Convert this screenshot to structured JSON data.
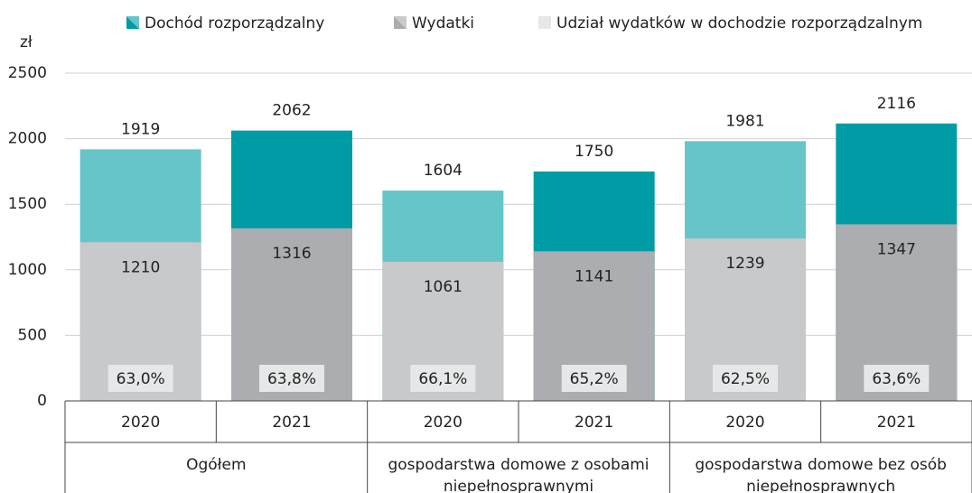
{
  "chart_data": {
    "type": "bar",
    "unit_label": "zł",
    "categories": [
      "2020",
      "2021",
      "2020",
      "2021",
      "2020",
      "2021"
    ],
    "groups": [
      "Ogółem",
      "gospodarstwa domowe z osobami niepełnosprawnymi",
      "gospodarstwa domowe bez osób niepełnosprawnych"
    ],
    "series": [
      {
        "name": "Dochód rozporządzalny",
        "colors": [
          "#66c5c9",
          "#009ca5",
          "#66c5c9",
          "#009ca5",
          "#66c5c9",
          "#009ca5"
        ],
        "values": [
          1919,
          2062,
          1604,
          1750,
          1981,
          2116
        ]
      },
      {
        "name": "Wydatki",
        "colors": [
          "#c8c9cb",
          "#acadb0",
          "#c8c9cb",
          "#acadb0",
          "#c8c9cb",
          "#acadb0"
        ],
        "values": [
          1210,
          1316,
          1061,
          1141,
          1239,
          1347
        ]
      },
      {
        "name": "Udział wydatków w dochodzie rozporządzalnym",
        "color": "#e6e7e8",
        "values": [
          63.0,
          63.8,
          66.1,
          65.2,
          62.5,
          63.6
        ],
        "value_labels": [
          "63,0%",
          "63,8%",
          "66,1%",
          "65,2%",
          "62,5%",
          "63,6%"
        ]
      }
    ],
    "ylim": [
      0,
      2500
    ],
    "yticks": [
      0,
      500,
      1000,
      1500,
      2000,
      2500
    ],
    "grid": true
  }
}
